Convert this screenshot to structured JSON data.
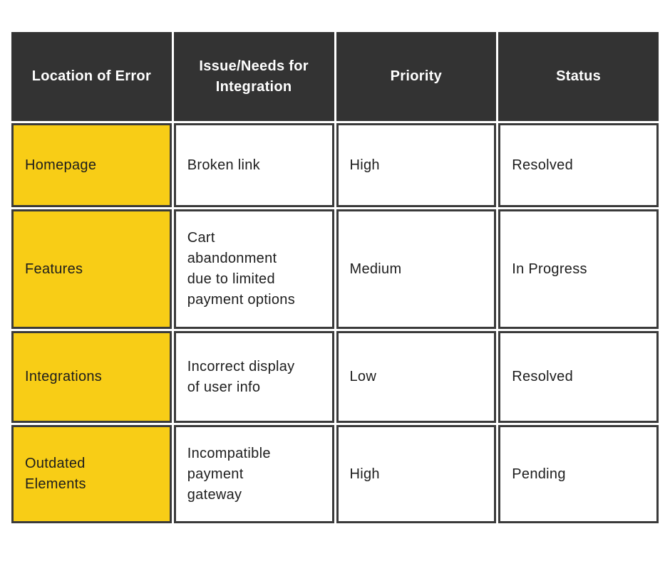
{
  "table": {
    "columns": [
      {
        "label": "Location of Error"
      },
      {
        "label": "Issue/Needs for Integration"
      },
      {
        "label": "Priority"
      },
      {
        "label": "Status"
      }
    ],
    "rows": [
      {
        "location": "Homepage",
        "issue": "Broken link",
        "priority": "High",
        "status": "Resolved"
      },
      {
        "location": "Features",
        "issue": "Cart\nabandonment\ndue to limited\npayment options",
        "priority": "Medium",
        "status": "In Progress"
      },
      {
        "location": "Integrations",
        "issue": "Incorrect display\nof user info",
        "priority": "Low",
        "status": "Resolved"
      },
      {
        "location": "Outdated\nElements",
        "issue": "Incompatible\npayment\ngateway",
        "priority": "High",
        "status": "Pending"
      }
    ],
    "colors": {
      "header_bg": "#333333",
      "header_text": "#ffffff",
      "row_label_bg": "#f8cd16",
      "cell_bg": "#ffffff",
      "border": "#3a3a3a",
      "body_text": "#1d1d1d",
      "page_bg": "#ffffff"
    }
  },
  "chart_data": {
    "type": "table",
    "title": "",
    "columns": [
      "Location of Error",
      "Issue/Needs for Integration",
      "Priority",
      "Status"
    ],
    "rows": [
      [
        "Homepage",
        "Broken link",
        "High",
        "Resolved"
      ],
      [
        "Features",
        "Cart abandonment due to limited payment options",
        "Medium",
        "In Progress"
      ],
      [
        "Integrations",
        "Incorrect display of user info",
        "Low",
        "Resolved"
      ],
      [
        "Outdated Elements",
        "Incompatible payment gateway",
        "High",
        "Pending"
      ]
    ]
  }
}
